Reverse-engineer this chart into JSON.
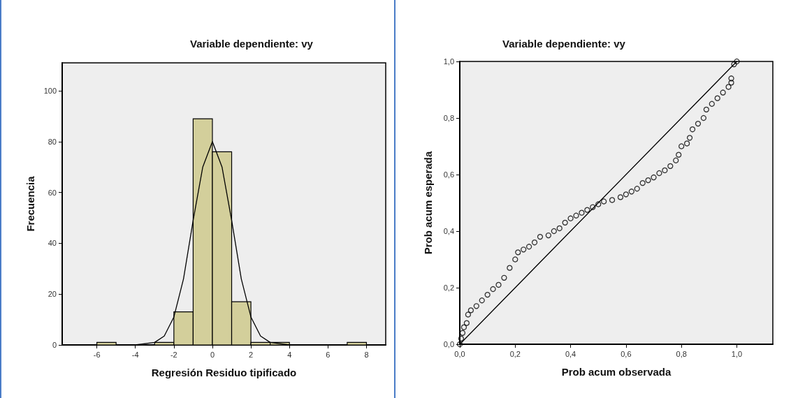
{
  "chart_data": [
    {
      "type": "histogram",
      "title": "Variable dependiente: vy",
      "xlabel": "Regresión Residuo tipificado",
      "ylabel": "Frecuencia",
      "bins": [
        -6,
        -5,
        -4,
        -3,
        -2,
        -1,
        0,
        1,
        2,
        3,
        4,
        5,
        6,
        7,
        8
      ],
      "series": [
        {
          "type": "histogram",
          "color": "#d3cf9b",
          "values": [
            1,
            0,
            0,
            1,
            13,
            89,
            76,
            17,
            1,
            1,
            0,
            0,
            0,
            1
          ]
        },
        {
          "type": "line",
          "color": "#000000",
          "x": [
            -4,
            -3,
            -2.5,
            -2,
            -1.5,
            -1,
            -0.5,
            0,
            0.5,
            1,
            1.5,
            2,
            2.5,
            3,
            4
          ],
          "values": [
            0,
            1,
            3.5,
            11,
            26,
            49,
            70,
            80,
            70,
            49,
            26,
            11,
            3.5,
            1,
            0
          ]
        }
      ],
      "xlim": [
        -7.8,
        9
      ],
      "xticks": [
        -6,
        -4,
        -2,
        0,
        2,
        4,
        6,
        8
      ],
      "ylim": [
        0,
        111
      ],
      "yticks": [
        0,
        20,
        40,
        60,
        80,
        100
      ],
      "grid": false,
      "marker": "none",
      "line_style": "solid"
    },
    {
      "type": "scatter",
      "title": "Variable dependiente: vy",
      "xlabel": "Prob acum observada",
      "ylabel": "Prob acum esperada",
      "series": [
        {
          "type": "scatter",
          "color": "#000000",
          "marker": "circle",
          "x": [
            0.0,
            0.005,
            0.01,
            0.015,
            0.025,
            0.03,
            0.04,
            0.06,
            0.08,
            0.1,
            0.12,
            0.14,
            0.16,
            0.18,
            0.2,
            0.21,
            0.23,
            0.25,
            0.27,
            0.29,
            0.32,
            0.34,
            0.36,
            0.38,
            0.4,
            0.42,
            0.44,
            0.46,
            0.48,
            0.5,
            0.52,
            0.55,
            0.58,
            0.6,
            0.62,
            0.64,
            0.66,
            0.68,
            0.7,
            0.72,
            0.74,
            0.76,
            0.78,
            0.79,
            0.8,
            0.82,
            0.83,
            0.84,
            0.86,
            0.88,
            0.89,
            0.91,
            0.93,
            0.95,
            0.97,
            0.98,
            0.98,
            0.99,
            1.0
          ],
          "values": [
            0.0,
            0.02,
            0.04,
            0.06,
            0.075,
            0.105,
            0.12,
            0.135,
            0.155,
            0.175,
            0.195,
            0.21,
            0.235,
            0.27,
            0.3,
            0.325,
            0.335,
            0.345,
            0.36,
            0.38,
            0.385,
            0.4,
            0.41,
            0.43,
            0.445,
            0.455,
            0.465,
            0.475,
            0.485,
            0.495,
            0.505,
            0.51,
            0.52,
            0.53,
            0.54,
            0.55,
            0.57,
            0.58,
            0.59,
            0.605,
            0.615,
            0.63,
            0.65,
            0.67,
            0.7,
            0.71,
            0.73,
            0.76,
            0.78,
            0.8,
            0.83,
            0.85,
            0.87,
            0.89,
            0.91,
            0.925,
            0.94,
            0.99,
            1.0
          ]
        },
        {
          "type": "line",
          "color": "#000000",
          "marker": "none",
          "x": [
            0,
            1
          ],
          "values": [
            0,
            1
          ]
        }
      ],
      "xlim": [
        0,
        1.13
      ],
      "xticks": [
        {
          "value": 0,
          "label": "0,0"
        },
        {
          "value": 0.2,
          "label": "0,2"
        },
        {
          "value": 0.4,
          "label": "0,4"
        },
        {
          "value": 0.6,
          "label": "0,6"
        },
        {
          "value": 0.8,
          "label": "0,8"
        },
        {
          "value": 1,
          "label": "1,0"
        }
      ],
      "ylim": [
        0,
        1
      ],
      "yticks": [
        {
          "value": 0,
          "label": "0,0"
        },
        {
          "value": 0.2,
          "label": "0,2"
        },
        {
          "value": 0.4,
          "label": "0,4"
        },
        {
          "value": 0.6,
          "label": "0,6"
        },
        {
          "value": 0.8,
          "label": "0,8"
        },
        {
          "value": 1,
          "label": "1,0"
        }
      ],
      "grid": false,
      "line_style": "solid"
    }
  ]
}
